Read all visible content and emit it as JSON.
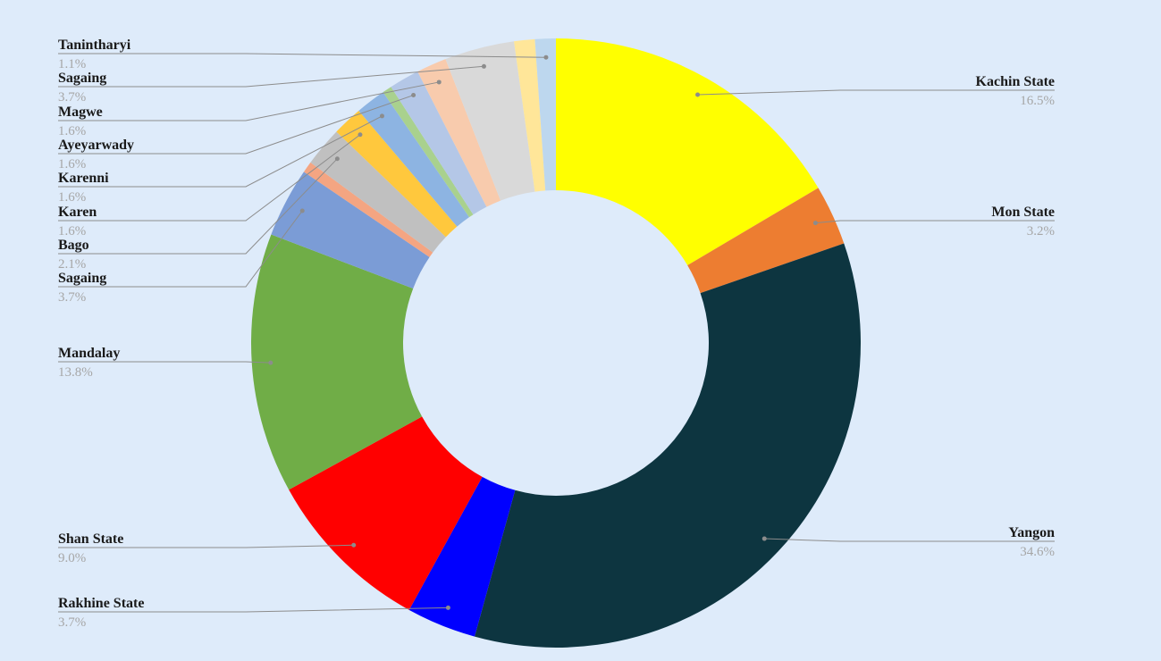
{
  "chart_data": {
    "type": "donut",
    "categories": [
      "Kachin State",
      "Mon State",
      "Yangon",
      "Rakhine State",
      "Shan State",
      "Mandalay",
      "Sagaing",
      null,
      "Bago",
      "Karen",
      "Karenni",
      null,
      "Ayeyarwady",
      "Magwe",
      "Sagaing",
      null,
      "Tanintharyi"
    ],
    "values": [
      16.5,
      3.2,
      34.6,
      3.7,
      9.0,
      13.8,
      3.7,
      0.6,
      2.1,
      1.6,
      1.6,
      0.5,
      1.6,
      1.6,
      3.7,
      1.1,
      1.1
    ],
    "value_labels": [
      "16.5%",
      "3.2%",
      "34.6%",
      "3.7%",
      "9.0%",
      "13.8%",
      "3.7%",
      null,
      "2.1%",
      "1.6%",
      "1.6%",
      null,
      "1.6%",
      "1.6%",
      "3.7%",
      null,
      "1.1%"
    ],
    "colors": [
      "#ffff00",
      "#ed7d31",
      "#0d3540",
      "#0000ff",
      "#ff0000",
      "#70ad47",
      "#7b9cd6",
      "#f4a582",
      "#c0c0c0",
      "#ffc83d",
      "#8db4e2",
      "#a9d18e",
      "#b4c7e7",
      "#f8cbad",
      "#d9d9d9",
      "#ffe699",
      "#bdd7ee"
    ]
  }
}
